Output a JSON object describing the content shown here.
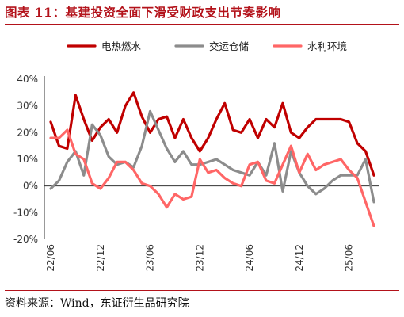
{
  "header": {
    "title": "图表 11：基建投资全面下滑受财政支出节奏影响"
  },
  "footer": {
    "source": "资料来源：Wind，东证衍生品研究院"
  },
  "chart_data": {
    "type": "line",
    "title": "图表 11：基建投资全面下滑受财政支出节奏影响",
    "xlabel": "",
    "ylabel": "",
    "ylim": [
      -20,
      40
    ],
    "yticks": [
      -20,
      -10,
      0,
      10,
      20,
      30,
      40
    ],
    "ytick_labels": [
      "-20%",
      "-10%",
      "0%",
      "10%",
      "20%",
      "30%",
      "40%"
    ],
    "xticks": [
      0,
      6,
      12,
      18,
      24,
      30,
      36
    ],
    "xtick_labels": [
      "22/06",
      "22/12",
      "23/06",
      "23/12",
      "24/06",
      "24/12",
      "25/06"
    ],
    "x": [
      "22/05",
      "22/06",
      "22/07",
      "22/08",
      "22/09",
      "22/10",
      "22/11",
      "22/12",
      "23/01",
      "23/02",
      "23/03",
      "23/04",
      "23/05",
      "23/06",
      "23/07",
      "23/08",
      "23/09",
      "23/10",
      "23/11",
      "23/12",
      "24/01",
      "24/02",
      "24/03",
      "24/04",
      "24/05",
      "24/06",
      "24/07",
      "24/08",
      "24/09",
      "24/10",
      "24/11",
      "24/12",
      "25/01",
      "25/02",
      "25/03",
      "25/04",
      "25/05",
      "25/06",
      "25/07",
      "25/08"
    ],
    "grid": false,
    "legend_position": "top",
    "series": [
      {
        "name": "电热燃水",
        "color": "#c00000",
        "values": [
          24,
          15,
          14,
          34,
          25,
          17,
          22,
          25,
          20,
          30,
          35,
          26,
          20,
          25,
          26,
          18,
          25,
          18,
          13,
          18,
          25,
          31,
          21,
          20,
          25,
          18,
          25,
          22,
          31,
          20,
          18,
          22,
          25,
          25,
          25,
          25,
          24,
          16,
          13,
          4
        ]
      },
      {
        "name": "交运仓储",
        "color": "#8c8c8c",
        "values": [
          -1,
          2,
          9,
          13,
          4,
          23,
          19,
          11,
          8,
          9,
          7,
          15,
          28,
          21,
          14,
          9,
          13,
          8,
          8,
          9,
          10,
          8,
          6,
          5,
          4,
          9,
          4,
          16,
          -2,
          13,
          5,
          0,
          -3,
          -1,
          2,
          4,
          4,
          4,
          10,
          -6
        ]
      },
      {
        "name": "水利环境",
        "color": "#ff6666",
        "values": [
          18,
          18,
          21,
          12,
          10,
          1,
          -1,
          3,
          9,
          9,
          6,
          1,
          0,
          -3,
          -8,
          -3,
          -5,
          -4,
          10,
          5,
          6,
          3,
          1,
          0,
          8,
          9,
          2,
          1,
          8,
          15,
          5,
          12,
          6,
          8,
          9,
          10,
          6,
          3,
          -6,
          -15
        ]
      }
    ]
  }
}
